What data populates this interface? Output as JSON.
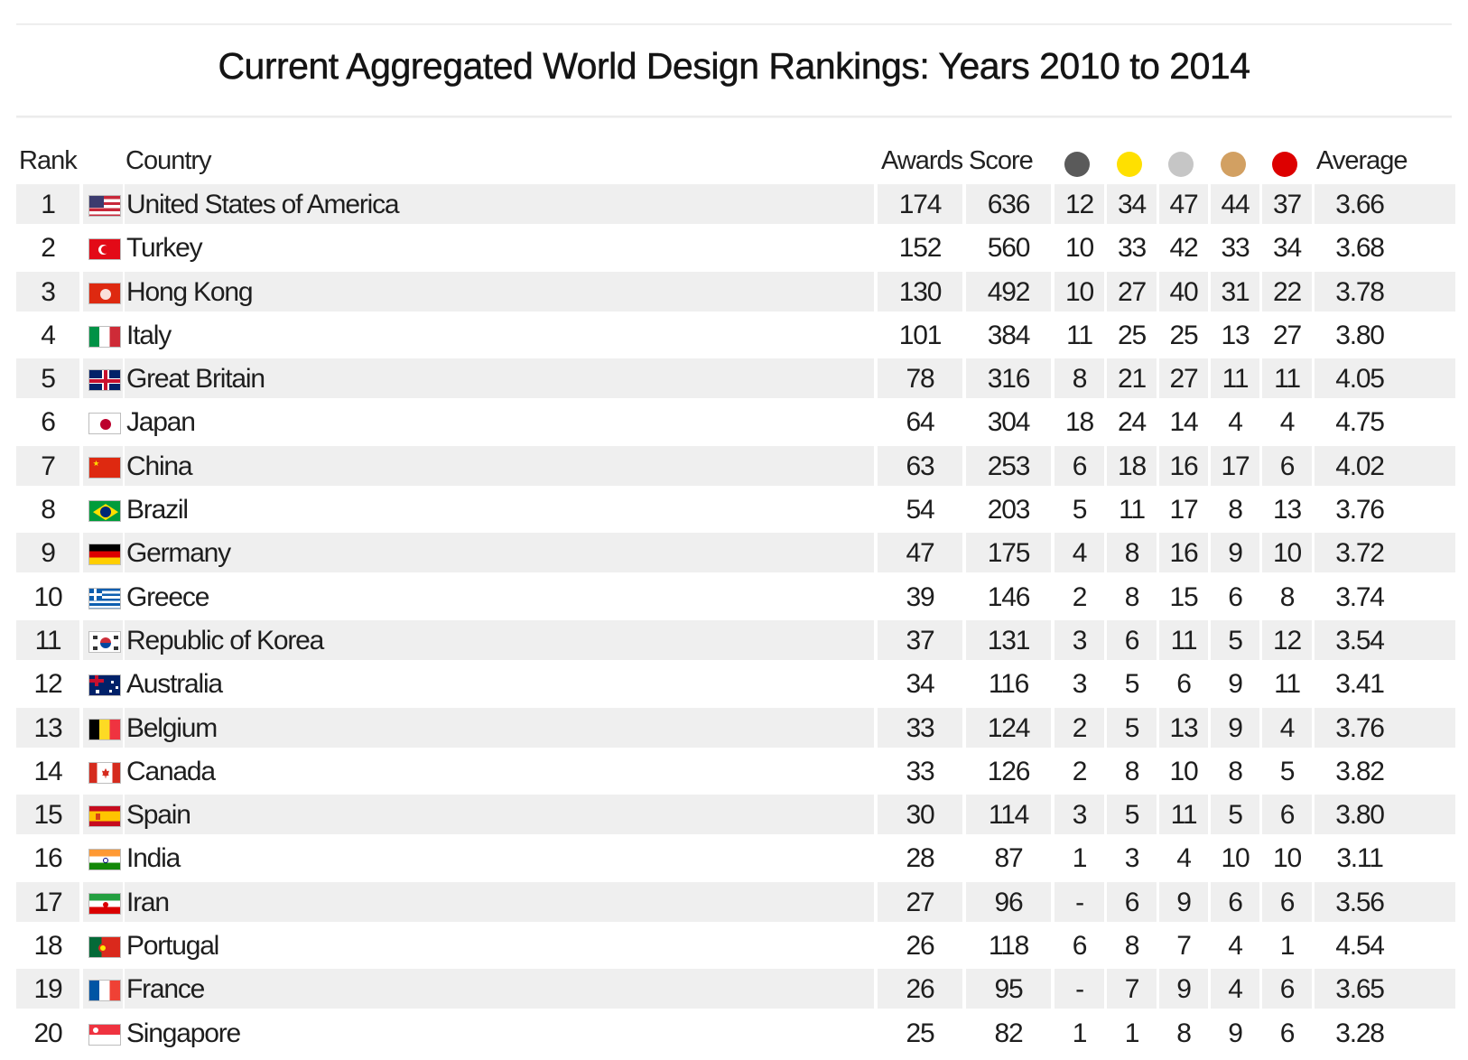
{
  "title": "Current Aggregated World Design Rankings: Years 2010 to 2014",
  "columns": {
    "rank": "Rank",
    "country": "Country",
    "awards": "Awards",
    "score": "Score",
    "average": "Average"
  },
  "medal_colors": [
    "#5a5a5a",
    "#ffe000",
    "#c6c6c6",
    "#d2a062",
    "#dd0000"
  ],
  "chart_data": {
    "type": "table",
    "title": "Current Aggregated World Design Rankings: Years 2010 to 2014",
    "columns": [
      "Rank",
      "Country",
      "Awards",
      "Score",
      "",
      "",
      "",
      "",
      "",
      "Average"
    ],
    "rows": [
      {
        "rank": "1",
        "country": "United States of America",
        "flag": "usa-flag",
        "awards": "174",
        "score": "636",
        "m": [
          "12",
          "34",
          "47",
          "44",
          "37"
        ],
        "average": "3.66"
      },
      {
        "rank": "2",
        "country": "Turkey",
        "flag": "turkey-flag",
        "awards": "152",
        "score": "560",
        "m": [
          "10",
          "33",
          "42",
          "33",
          "34"
        ],
        "average": "3.68"
      },
      {
        "rank": "3",
        "country": "Hong Kong",
        "flag": "hong-kong-flag",
        "awards": "130",
        "score": "492",
        "m": [
          "10",
          "27",
          "40",
          "31",
          "22"
        ],
        "average": "3.78"
      },
      {
        "rank": "4",
        "country": "Italy",
        "flag": "italy-flag",
        "awards": "101",
        "score": "384",
        "m": [
          "11",
          "25",
          "25",
          "13",
          "27"
        ],
        "average": "3.80"
      },
      {
        "rank": "5",
        "country": "Great Britain",
        "flag": "great-britain-flag",
        "awards": "78",
        "score": "316",
        "m": [
          "8",
          "21",
          "27",
          "11",
          "11"
        ],
        "average": "4.05"
      },
      {
        "rank": "6",
        "country": "Japan",
        "flag": "japan-flag",
        "awards": "64",
        "score": "304",
        "m": [
          "18",
          "24",
          "14",
          "4",
          "4"
        ],
        "average": "4.75"
      },
      {
        "rank": "7",
        "country": "China",
        "flag": "china-flag",
        "awards": "63",
        "score": "253",
        "m": [
          "6",
          "18",
          "16",
          "17",
          "6"
        ],
        "average": "4.02"
      },
      {
        "rank": "8",
        "country": "Brazil",
        "flag": "brazil-flag",
        "awards": "54",
        "score": "203",
        "m": [
          "5",
          "11",
          "17",
          "8",
          "13"
        ],
        "average": "3.76"
      },
      {
        "rank": "9",
        "country": "Germany",
        "flag": "germany-flag",
        "awards": "47",
        "score": "175",
        "m": [
          "4",
          "8",
          "16",
          "9",
          "10"
        ],
        "average": "3.72"
      },
      {
        "rank": "10",
        "country": "Greece",
        "flag": "greece-flag",
        "awards": "39",
        "score": "146",
        "m": [
          "2",
          "8",
          "15",
          "6",
          "8"
        ],
        "average": "3.74"
      },
      {
        "rank": "11",
        "country": "Republic of Korea",
        "flag": "korea-flag",
        "awards": "37",
        "score": "131",
        "m": [
          "3",
          "6",
          "11",
          "5",
          "12"
        ],
        "average": "3.54"
      },
      {
        "rank": "12",
        "country": "Australia",
        "flag": "australia-flag",
        "awards": "34",
        "score": "116",
        "m": [
          "3",
          "5",
          "6",
          "9",
          "11"
        ],
        "average": "3.41"
      },
      {
        "rank": "13",
        "country": "Belgium",
        "flag": "belgium-flag",
        "awards": "33",
        "score": "124",
        "m": [
          "2",
          "5",
          "13",
          "9",
          "4"
        ],
        "average": "3.76"
      },
      {
        "rank": "14",
        "country": "Canada",
        "flag": "canada-flag",
        "awards": "33",
        "score": "126",
        "m": [
          "2",
          "8",
          "10",
          "8",
          "5"
        ],
        "average": "3.82"
      },
      {
        "rank": "15",
        "country": "Spain",
        "flag": "spain-flag",
        "awards": "30",
        "score": "114",
        "m": [
          "3",
          "5",
          "11",
          "5",
          "6"
        ],
        "average": "3.80"
      },
      {
        "rank": "16",
        "country": "India",
        "flag": "india-flag",
        "awards": "28",
        "score": "87",
        "m": [
          "1",
          "3",
          "4",
          "10",
          "10"
        ],
        "average": "3.11"
      },
      {
        "rank": "17",
        "country": "Iran",
        "flag": "iran-flag",
        "awards": "27",
        "score": "96",
        "m": [
          "-",
          "6",
          "9",
          "6",
          "6"
        ],
        "average": "3.56"
      },
      {
        "rank": "18",
        "country": "Portugal",
        "flag": "portugal-flag",
        "awards": "26",
        "score": "118",
        "m": [
          "6",
          "8",
          "7",
          "4",
          "1"
        ],
        "average": "4.54"
      },
      {
        "rank": "19",
        "country": "France",
        "flag": "france-flag",
        "awards": "26",
        "score": "95",
        "m": [
          "-",
          "7",
          "9",
          "4",
          "6"
        ],
        "average": "3.65"
      },
      {
        "rank": "20",
        "country": "Singapore",
        "flag": "singapore-flag",
        "awards": "25",
        "score": "82",
        "m": [
          "1",
          "1",
          "8",
          "9",
          "6"
        ],
        "average": "3.28"
      }
    ]
  }
}
